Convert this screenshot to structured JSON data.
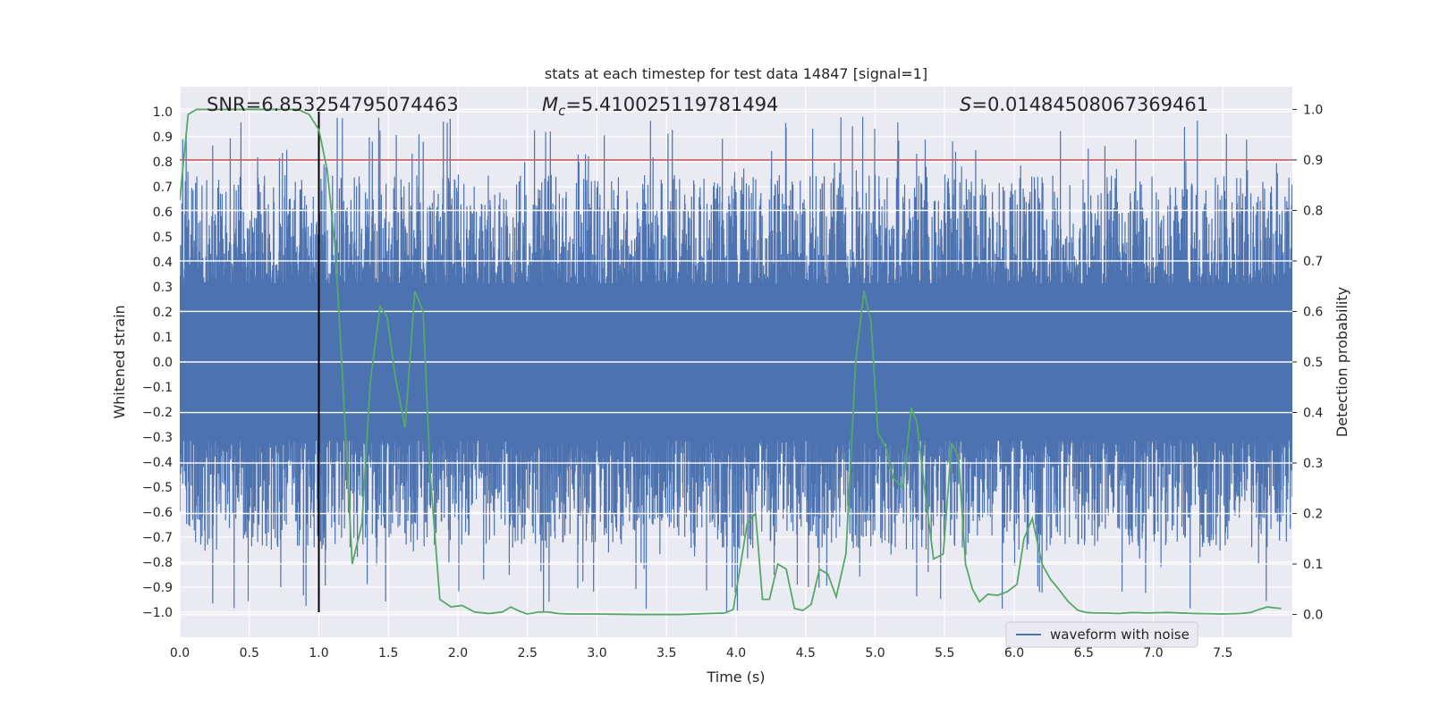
{
  "chart_data": {
    "type": "line",
    "title": "stats at each timestep for test data 14847 [signal=1]",
    "xlabel": "Time (s)",
    "ylabel_left": "Whitened strain",
    "ylabel_right": "Detection probability",
    "xlim": [
      0.0,
      8.0
    ],
    "ylim_left": [
      -1.1,
      1.1
    ],
    "ylim_right": [
      -0.045,
      1.045
    ],
    "x_ticks": [
      "0.0",
      "0.5",
      "1.0",
      "1.5",
      "2.0",
      "2.5",
      "3.0",
      "3.5",
      "4.0",
      "4.5",
      "5.0",
      "5.5",
      "6.0",
      "6.5",
      "7.0",
      "7.5"
    ],
    "y_left_ticks": [
      "1.0",
      "0.9",
      "0.8",
      "0.7",
      "0.6",
      "0.5",
      "0.4",
      "0.3",
      "0.2",
      "0.1",
      "0.0",
      "-0.1",
      "-0.2",
      "-0.3",
      "-0.4",
      "-0.5",
      "-0.6",
      "-0.7",
      "-0.8",
      "-0.9",
      "-1.0"
    ],
    "y_right_ticks": [
      "1.0",
      "0.9",
      "0.8",
      "0.7",
      "0.6",
      "0.5",
      "0.4",
      "0.3",
      "0.2",
      "0.1",
      "0.0"
    ],
    "annotations": {
      "snr": "SNR=6.853254795074463",
      "mc_symbol": "M",
      "mc_sub": "c",
      "mc_value": "=5.410025119781494",
      "s_symbol": "S",
      "s_value": "=0.01484508067369461"
    },
    "legend": {
      "placement": "lower-right",
      "entries": [
        "waveform with noise"
      ]
    },
    "threshold_line": {
      "axis": "right",
      "value": 0.9,
      "color": "#c44e52"
    },
    "event_marker": {
      "x": 1.0,
      "y_range": [
        -1.0,
        1.0
      ],
      "color": "#000000"
    },
    "waveform": {
      "name": "waveform with noise",
      "color": "#4c72b0",
      "x_range": [
        0.0,
        8.0
      ],
      "core_amplitude": 0.45,
      "peak_amplitude_range": [
        -1.0,
        0.98
      ]
    },
    "detection_probability": {
      "color": "#55a868",
      "x": [
        0.0,
        0.06,
        0.12,
        0.2,
        0.3,
        0.45,
        0.6,
        0.75,
        0.85,
        0.93,
        1.0,
        1.06,
        1.12,
        1.18,
        1.24,
        1.31,
        1.37,
        1.44,
        1.49,
        1.55,
        1.62,
        1.69,
        1.75,
        1.8,
        1.87,
        1.95,
        2.03,
        2.12,
        2.22,
        2.32,
        2.38,
        2.44,
        2.5,
        2.58,
        2.65,
        2.72,
        2.8,
        3.0,
        3.3,
        3.6,
        3.8,
        3.92,
        3.98,
        4.08,
        4.14,
        4.19,
        4.24,
        4.3,
        4.36,
        4.42,
        4.48,
        4.54,
        4.6,
        4.66,
        4.72,
        4.79,
        4.86,
        4.92,
        4.97,
        5.02,
        5.08,
        5.13,
        5.2,
        5.26,
        5.3,
        5.36,
        5.42,
        5.49,
        5.55,
        5.6,
        5.65,
        5.7,
        5.75,
        5.81,
        5.88,
        5.95,
        6.02,
        6.07,
        6.13,
        6.2,
        6.26,
        6.32,
        6.39,
        6.46,
        6.52,
        6.58,
        6.65,
        6.75,
        6.85,
        6.95,
        7.1,
        7.3,
        7.5,
        7.62,
        7.7,
        7.76,
        7.82,
        7.88,
        7.92
      ],
      "y": [
        0.82,
        0.99,
        1.0,
        1.0,
        1.0,
        1.0,
        1.0,
        1.0,
        1.0,
        0.99,
        0.96,
        0.88,
        0.72,
        0.42,
        0.1,
        0.18,
        0.46,
        0.61,
        0.59,
        0.47,
        0.37,
        0.64,
        0.6,
        0.28,
        0.03,
        0.015,
        0.018,
        0.005,
        0.002,
        0.005,
        0.015,
        0.007,
        0.001,
        0.005,
        0.005,
        0.002,
        0.001,
        0.001,
        0.0,
        0.0,
        0.002,
        0.003,
        0.01,
        0.18,
        0.2,
        0.03,
        0.03,
        0.1,
        0.09,
        0.012,
        0.008,
        0.02,
        0.09,
        0.08,
        0.035,
        0.12,
        0.5,
        0.64,
        0.58,
        0.36,
        0.33,
        0.27,
        0.25,
        0.41,
        0.38,
        0.24,
        0.11,
        0.12,
        0.34,
        0.31,
        0.1,
        0.05,
        0.025,
        0.04,
        0.038,
        0.045,
        0.06,
        0.15,
        0.19,
        0.1,
        0.07,
        0.05,
        0.025,
        0.008,
        0.004,
        0.003,
        0.003,
        0.002,
        0.004,
        0.003,
        0.004,
        0.002,
        0.001,
        0.002,
        0.004,
        0.01,
        0.015,
        0.013,
        0.012
      ]
    }
  }
}
